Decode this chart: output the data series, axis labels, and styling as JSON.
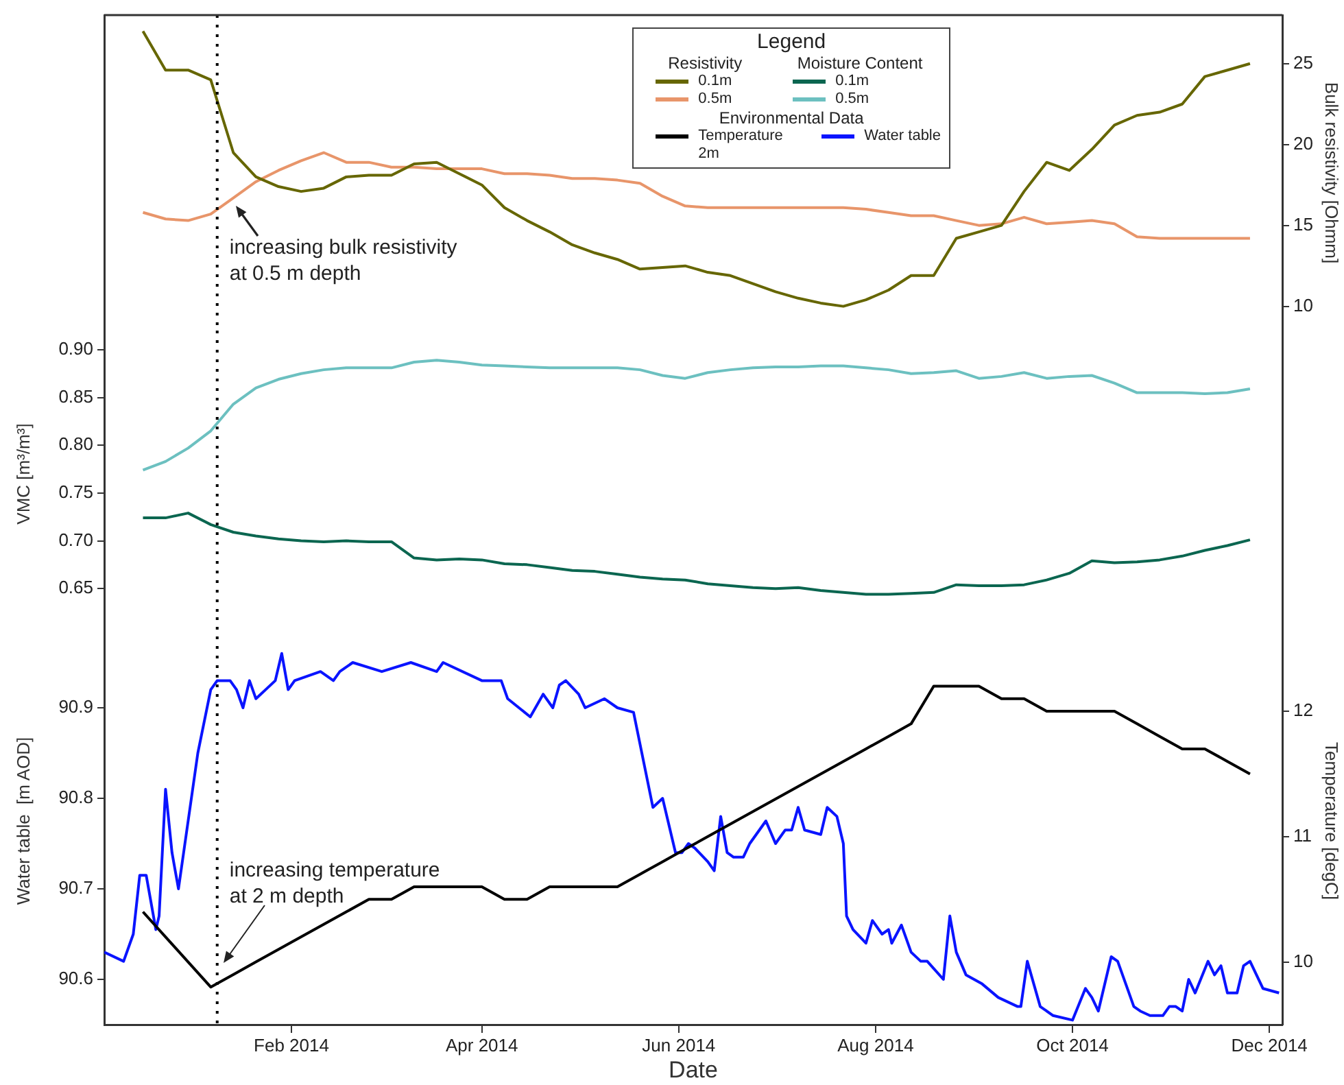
{
  "chart_data": [
    {
      "type": "line",
      "tick_labels": "y",
      "y2label": "Bulk resistivity [Ohmm]",
      "legend": "top right",
      "legend_title": "Legend",
      "xlim": [
        "2013-12-05",
        "2014-12-05"
      ],
      "y2lim": [
        8.5,
        28
      ],
      "y2ticks": [
        10,
        15,
        20,
        25
      ],
      "ref_lines": [
        {
          "axis": "x",
          "value": "2014-01-09",
          "color": "#000000",
          "line_style": "dotted"
        }
      ],
      "annotations": [
        "increasing bulk resistivity\nat 0.5 m depth",
        "Resistivity",
        "Moisture Content",
        "Environmental Data"
      ],
      "x": [
        "2013-12-17",
        "2013-12-24",
        "2013-12-31",
        "2014-01-07",
        "2014-01-14",
        "2014-01-21",
        "2014-01-28",
        "2014-02-04",
        "2014-02-11",
        "2014-02-18",
        "2014-02-25",
        "2014-03-04",
        "2014-03-11",
        "2014-03-18",
        "2014-03-25",
        "2014-04-01",
        "2014-04-08",
        "2014-04-15",
        "2014-04-22",
        "2014-04-29",
        "2014-05-06",
        "2014-05-13",
        "2014-05-20",
        "2014-05-27",
        "2014-06-03",
        "2014-06-10",
        "2014-06-17",
        "2014-06-24",
        "2014-07-01",
        "2014-07-08",
        "2014-07-15",
        "2014-07-22",
        "2014-07-29",
        "2014-08-05",
        "2014-08-12",
        "2014-08-19",
        "2014-08-26",
        "2014-09-02",
        "2014-09-09",
        "2014-09-16",
        "2014-09-23",
        "2014-09-30",
        "2014-10-07",
        "2014-10-14",
        "2014-10-21",
        "2014-10-28",
        "2014-11-04",
        "2014-11-11",
        "2014-11-18",
        "2014-11-25"
      ],
      "series": [
        {
          "name": "0.1m",
          "color": "#666600",
          "axis": "y2",
          "values": [
            27.0,
            24.6,
            24.6,
            24.0,
            19.5,
            18.0,
            17.4,
            17.1,
            17.3,
            18.0,
            18.1,
            18.1,
            18.8,
            18.9,
            18.2,
            17.5,
            16.1,
            15.3,
            14.6,
            13.8,
            13.3,
            12.9,
            12.3,
            12.4,
            12.5,
            12.1,
            11.9,
            11.4,
            10.9,
            10.5,
            10.2,
            10.0,
            10.4,
            11.0,
            11.9,
            11.9,
            14.2,
            14.6,
            15.0,
            17.1,
            18.9,
            18.4,
            19.7,
            21.2,
            21.8,
            22.0,
            22.5,
            24.2,
            24.6,
            25.0
          ]
        },
        {
          "name": "0.5m",
          "color": "#e8956a",
          "axis": "y2",
          "values": [
            15.8,
            15.4,
            15.3,
            15.7,
            16.7,
            17.7,
            18.4,
            19.0,
            19.5,
            18.9,
            18.9,
            18.6,
            18.6,
            18.5,
            18.5,
            18.5,
            18.2,
            18.2,
            18.1,
            17.9,
            17.9,
            17.8,
            17.6,
            16.8,
            16.2,
            16.1,
            16.1,
            16.1,
            16.1,
            16.1,
            16.1,
            16.1,
            16.0,
            15.8,
            15.6,
            15.6,
            15.3,
            15.0,
            15.1,
            15.5,
            15.1,
            15.2,
            15.3,
            15.1,
            14.3,
            14.2,
            14.2,
            14.2,
            14.2,
            14.2
          ]
        }
      ]
    },
    {
      "type": "line",
      "tick_labels": "y",
      "ylabel": "VMC [m³/m³]",
      "legend": "top right",
      "xlim": [
        "2013-12-05",
        "2014-12-05"
      ],
      "ylim": [
        0.62,
        0.92
      ],
      "yticks": [
        {
          "value": 0.65,
          "label": "0.65"
        },
        {
          "value": 0.7,
          "label": "0.70"
        },
        {
          "value": 0.75,
          "label": "0.75"
        },
        {
          "value": 0.8,
          "label": "0.80"
        },
        {
          "value": 0.85,
          "label": "0.85"
        },
        {
          "value": 0.9,
          "label": "0.90"
        }
      ],
      "ref_lines": [
        {
          "axis": "x",
          "value": "2014-01-09",
          "color": "#000000",
          "line_style": "dotted"
        }
      ],
      "x": [
        "2013-12-17",
        "2013-12-24",
        "2013-12-31",
        "2014-01-07",
        "2014-01-14",
        "2014-01-21",
        "2014-01-28",
        "2014-02-04",
        "2014-02-11",
        "2014-02-18",
        "2014-02-25",
        "2014-03-04",
        "2014-03-11",
        "2014-03-18",
        "2014-03-25",
        "2014-04-01",
        "2014-04-08",
        "2014-04-15",
        "2014-04-22",
        "2014-04-29",
        "2014-05-06",
        "2014-05-13",
        "2014-05-20",
        "2014-05-27",
        "2014-06-03",
        "2014-06-10",
        "2014-06-17",
        "2014-06-24",
        "2014-07-01",
        "2014-07-08",
        "2014-07-15",
        "2014-07-22",
        "2014-07-29",
        "2014-08-05",
        "2014-08-12",
        "2014-08-19",
        "2014-08-26",
        "2014-09-02",
        "2014-09-09",
        "2014-09-16",
        "2014-09-23",
        "2014-09-30",
        "2014-10-07",
        "2014-10-14",
        "2014-10-21",
        "2014-10-28",
        "2014-11-04",
        "2014-11-11",
        "2014-11-18",
        "2014-11-25"
      ],
      "series": [
        {
          "name": "0.1m",
          "color": "#0b6650",
          "values": [
            0.724,
            0.724,
            0.729,
            0.717,
            0.709,
            0.705,
            0.702,
            0.7,
            0.699,
            0.7,
            0.699,
            0.699,
            0.682,
            0.68,
            0.681,
            0.68,
            0.676,
            0.675,
            0.672,
            0.669,
            0.668,
            0.665,
            0.662,
            0.66,
            0.659,
            0.655,
            0.653,
            0.651,
            0.65,
            0.651,
            0.648,
            0.646,
            0.644,
            0.644,
            0.645,
            0.646,
            0.654,
            0.653,
            0.653,
            0.654,
            0.659,
            0.666,
            0.679,
            0.677,
            0.678,
            0.68,
            0.684,
            0.69,
            0.695,
            0.701
          ]
        },
        {
          "name": "0.5m",
          "color": "#6cc0c0",
          "values": [
            0.774,
            0.783,
            0.797,
            0.815,
            0.843,
            0.86,
            0.869,
            0.875,
            0.879,
            0.881,
            0.881,
            0.881,
            0.887,
            0.889,
            0.887,
            0.884,
            0.883,
            0.882,
            0.881,
            0.881,
            0.881,
            0.881,
            0.879,
            0.873,
            0.87,
            0.876,
            0.879,
            0.881,
            0.882,
            0.882,
            0.883,
            0.883,
            0.881,
            0.879,
            0.875,
            0.876,
            0.878,
            0.87,
            0.872,
            0.876,
            0.87,
            0.872,
            0.873,
            0.865,
            0.855,
            0.855,
            0.855,
            0.854,
            0.855,
            0.859
          ]
        }
      ]
    },
    {
      "type": "line",
      "xlabel": "Date",
      "ylabel": "Water table  [m AOD]",
      "y2label": "Temperature [degC]",
      "legend": "top right",
      "xlim": [
        "2013-12-05",
        "2014-12-05"
      ],
      "xticks": [
        {
          "value": "2014-02-01",
          "label": "Feb 2014"
        },
        {
          "value": "2014-04-01",
          "label": "Apr 2014"
        },
        {
          "value": "2014-06-01",
          "label": "Jun 2014"
        },
        {
          "value": "2014-08-01",
          "label": "Aug 2014"
        },
        {
          "value": "2014-10-01",
          "label": "Oct 2014"
        },
        {
          "value": "2014-12-01",
          "label": "Dec 2014"
        }
      ],
      "ylim": [
        90.55,
        91.0
      ],
      "yticks": [
        90.6,
        90.7,
        90.8,
        90.9
      ],
      "y2lim": [
        9.5,
        12.75
      ],
      "y2ticks": [
        10,
        11,
        12
      ],
      "ref_lines": [
        {
          "axis": "x",
          "value": "2014-01-09",
          "color": "#000000",
          "line_style": "dotted"
        }
      ],
      "annotations": [
        "increasing temperature\nat 2 m depth"
      ],
      "x": [
        "2013-12-17",
        "2013-12-24",
        "2013-12-31",
        "2014-01-07",
        "2014-01-14",
        "2014-01-21",
        "2014-01-28",
        "2014-02-04",
        "2014-02-11",
        "2014-02-18",
        "2014-02-25",
        "2014-03-04",
        "2014-03-11",
        "2014-03-18",
        "2014-03-25",
        "2014-04-01",
        "2014-04-08",
        "2014-04-15",
        "2014-04-22",
        "2014-04-29",
        "2014-05-06",
        "2014-05-13",
        "2014-05-20",
        "2014-05-27",
        "2014-06-03",
        "2014-06-10",
        "2014-06-17",
        "2014-06-24",
        "2014-07-01",
        "2014-07-08",
        "2014-07-15",
        "2014-07-22",
        "2014-07-29",
        "2014-08-05",
        "2014-08-12",
        "2014-08-19",
        "2014-08-26",
        "2014-09-02",
        "2014-09-09",
        "2014-09-16",
        "2014-09-23",
        "2014-09-30",
        "2014-10-07",
        "2014-10-14",
        "2014-10-21",
        "2014-10-28",
        "2014-11-04",
        "2014-11-11",
        "2014-11-18",
        "2014-11-25"
      ],
      "series": [
        {
          "name": "Temperature 2m",
          "color": "#000000",
          "axis": "y2",
          "values": [
            10.4,
            10.2,
            10.0,
            9.8,
            9.9,
            10.0,
            10.1,
            10.2,
            10.3,
            10.4,
            10.5,
            10.5,
            10.6,
            10.6,
            10.6,
            10.6,
            10.5,
            10.5,
            10.6,
            10.6,
            10.6,
            10.6,
            10.7,
            10.8,
            10.9,
            11.0,
            11.1,
            11.2,
            11.3,
            11.4,
            11.5,
            11.6,
            11.7,
            11.8,
            11.9,
            12.2,
            12.2,
            12.2,
            12.1,
            12.1,
            12.0,
            12.0,
            12.0,
            12.0,
            11.9,
            11.8,
            11.7,
            11.7,
            11.6,
            11.5
          ]
        },
        {
          "name": "Water table",
          "color": "#0a14ff",
          "x": [
            "2013-12-05",
            "2013-12-11",
            "2013-12-14",
            "2013-12-16",
            "2013-12-18",
            "2013-12-21",
            "2013-12-22",
            "2013-12-24",
            "2013-12-26",
            "2013-12-28",
            "2013-12-30",
            "2014-01-03",
            "2014-01-07",
            "2014-01-09",
            "2014-01-13",
            "2014-01-15",
            "2014-01-17",
            "2014-01-19",
            "2014-01-21",
            "2014-01-24",
            "2014-01-27",
            "2014-01-29",
            "2014-01-31",
            "2014-02-02",
            "2014-02-10",
            "2014-02-14",
            "2014-02-16",
            "2014-02-20",
            "2014-03-01",
            "2014-03-10",
            "2014-03-18",
            "2014-03-20",
            "2014-04-01",
            "2014-04-07",
            "2014-04-09",
            "2014-04-16",
            "2014-04-20",
            "2014-04-23",
            "2014-04-25",
            "2014-04-27",
            "2014-05-01",
            "2014-05-03",
            "2014-05-09",
            "2014-05-13",
            "2014-05-18",
            "2014-05-24",
            "2014-05-27",
            "2014-05-31",
            "2014-06-02",
            "2014-06-04",
            "2014-06-06",
            "2014-06-10",
            "2014-06-12",
            "2014-06-14",
            "2014-06-16",
            "2014-06-18",
            "2014-06-21",
            "2014-06-23",
            "2014-06-28",
            "2014-07-01",
            "2014-07-04",
            "2014-07-06",
            "2014-07-08",
            "2014-07-10",
            "2014-07-15",
            "2014-07-17",
            "2014-07-20",
            "2014-07-22",
            "2014-07-23",
            "2014-07-25",
            "2014-07-29",
            "2014-07-31",
            "2014-08-03",
            "2014-08-05",
            "2014-08-06",
            "2014-08-09",
            "2014-08-12",
            "2014-08-15",
            "2014-08-17",
            "2014-08-22",
            "2014-08-24",
            "2014-08-26",
            "2014-08-29",
            "2014-09-03",
            "2014-09-08",
            "2014-09-14",
            "2014-09-15",
            "2014-09-17",
            "2014-09-21",
            "2014-09-25",
            "2014-10-01",
            "2014-10-05",
            "2014-10-07",
            "2014-10-09",
            "2014-10-13",
            "2014-10-15",
            "2014-10-18",
            "2014-10-20",
            "2014-10-22",
            "2014-10-25",
            "2014-10-29",
            "2014-10-31",
            "2014-11-02",
            "2014-11-04",
            "2014-11-06",
            "2014-11-08",
            "2014-11-12",
            "2014-11-14",
            "2014-11-16",
            "2014-11-18",
            "2014-11-21",
            "2014-11-23",
            "2014-11-25",
            "2014-11-27",
            "2014-11-29",
            "2014-12-04"
          ],
          "values": [
            90.63,
            90.62,
            90.65,
            90.715,
            90.715,
            90.655,
            90.67,
            90.81,
            90.74,
            90.7,
            90.75,
            90.85,
            90.92,
            90.93,
            90.93,
            90.92,
            90.9,
            90.93,
            90.91,
            90.92,
            90.93,
            90.96,
            90.92,
            90.93,
            90.94,
            90.93,
            90.94,
            90.95,
            90.94,
            90.95,
            90.94,
            90.95,
            90.93,
            90.93,
            90.91,
            90.89,
            90.915,
            90.9,
            90.925,
            90.93,
            90.915,
            90.9,
            90.91,
            90.9,
            90.895,
            90.79,
            90.8,
            90.74,
            90.74,
            90.75,
            90.745,
            90.73,
            90.72,
            90.78,
            90.74,
            90.735,
            90.735,
            90.75,
            90.775,
            90.75,
            90.765,
            90.765,
            90.79,
            90.765,
            90.76,
            90.79,
            90.78,
            90.75,
            90.67,
            90.655,
            90.64,
            90.665,
            90.65,
            90.655,
            90.64,
            90.66,
            90.63,
            90.62,
            90.62,
            90.6,
            90.67,
            90.63,
            90.605,
            90.595,
            90.58,
            90.57,
            90.57,
            90.62,
            90.57,
            90.56,
            90.555,
            90.59,
            90.58,
            90.565,
            90.625,
            90.62,
            90.59,
            90.57,
            90.565,
            90.56,
            90.56,
            90.57,
            90.57,
            90.565,
            90.6,
            90.585,
            90.62,
            90.605,
            90.615,
            90.585,
            90.585,
            90.615,
            90.62,
            90.605,
            90.59,
            90.585
          ]
        }
      ]
    }
  ]
}
